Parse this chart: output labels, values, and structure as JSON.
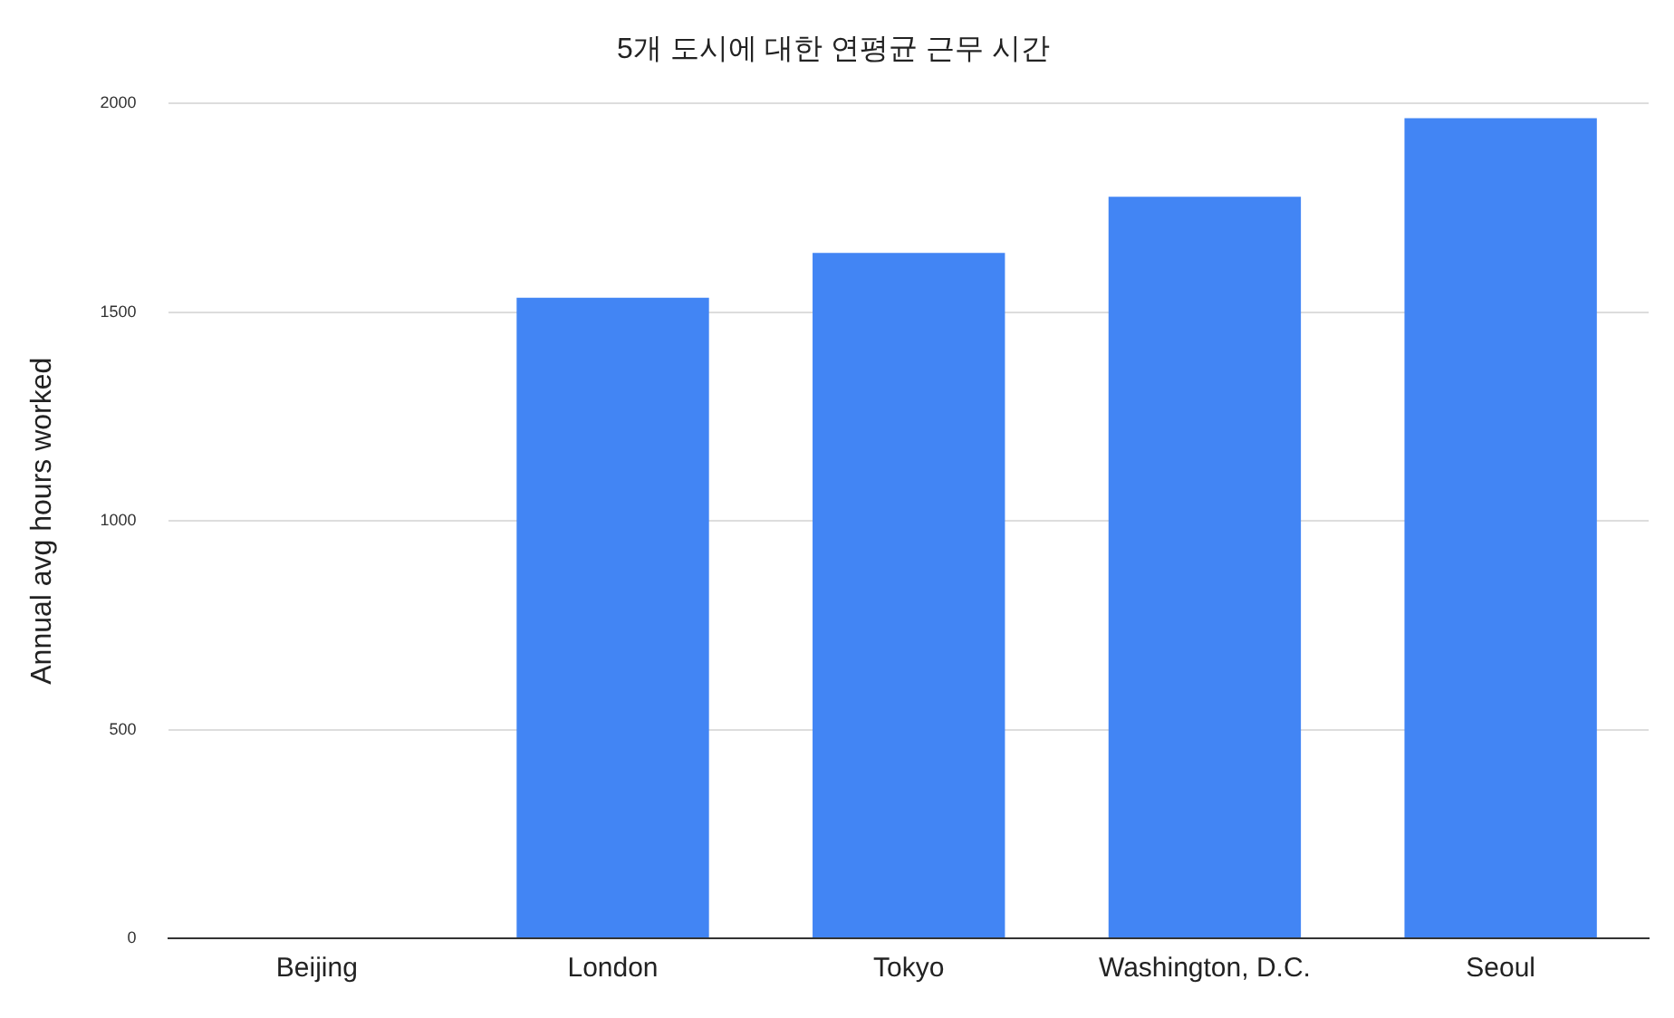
{
  "chart_data": {
    "type": "bar",
    "title": "5개 도시에 대한 연평균 근무 시간",
    "ylabel": "Annual avg hours worked",
    "categories": [
      "Beijing",
      "London",
      "Tokyo",
      "Washington, D.C.",
      "Seoul"
    ],
    "values": [
      null,
      1535,
      1642,
      1777,
      1965
    ],
    "color": "#4285f4",
    "ylim": [
      0,
      2000
    ],
    "yticks": [
      0,
      500,
      1000,
      1500,
      2000
    ],
    "grid": "y"
  }
}
